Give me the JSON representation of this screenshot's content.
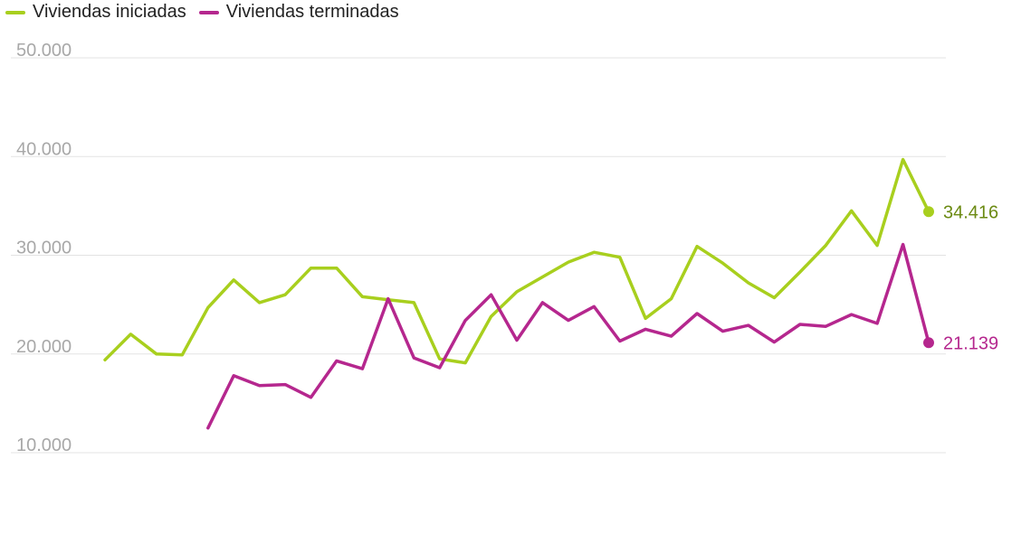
{
  "chart_data": {
    "type": "line",
    "title": "",
    "xlabel": "",
    "ylabel": "",
    "ylim": [
      10000,
      50000
    ],
    "yticks": [
      {
        "value": 10000,
        "label": "10.000"
      },
      {
        "value": 20000,
        "label": "20.000"
      },
      {
        "value": 30000,
        "label": "30.000"
      },
      {
        "value": 40000,
        "label": "40.000"
      },
      {
        "value": 50000,
        "label": "50.000"
      }
    ],
    "grid": true,
    "legend_position": "top-left",
    "x": [
      1,
      2,
      3,
      4,
      5,
      6,
      7,
      8,
      9,
      10,
      11,
      12,
      13,
      14,
      15,
      16,
      17,
      18,
      19,
      20,
      21,
      22,
      23,
      24,
      25,
      26,
      27,
      28,
      29,
      30,
      31,
      32,
      33
    ],
    "series": [
      {
        "name": "Viviendas iniciadas",
        "color": "#a8cf1e",
        "label_color": "#6b8a12",
        "end_label": "34.416",
        "values": [
          19400,
          22000,
          20000,
          19900,
          24700,
          27500,
          25200,
          26000,
          28700,
          28700,
          25800,
          25500,
          25200,
          19500,
          19100,
          23800,
          26300,
          27800,
          29300,
          30300,
          29800,
          23600,
          25600,
          30900,
          29200,
          27200,
          25700,
          28300,
          31000,
          34500,
          31000,
          39700,
          34416
        ]
      },
      {
        "name": "Viviendas terminadas",
        "color": "#b5278e",
        "label_color": "#b5278e",
        "end_label": "21.139",
        "values": [
          null,
          null,
          null,
          null,
          12500,
          17800,
          16800,
          16900,
          15600,
          19300,
          18500,
          25600,
          19600,
          18600,
          23400,
          26000,
          21400,
          25200,
          23400,
          24800,
          21300,
          22500,
          21800,
          24100,
          22300,
          22900,
          21200,
          23000,
          22800,
          24000,
          23100,
          31100,
          21139
        ]
      }
    ]
  }
}
